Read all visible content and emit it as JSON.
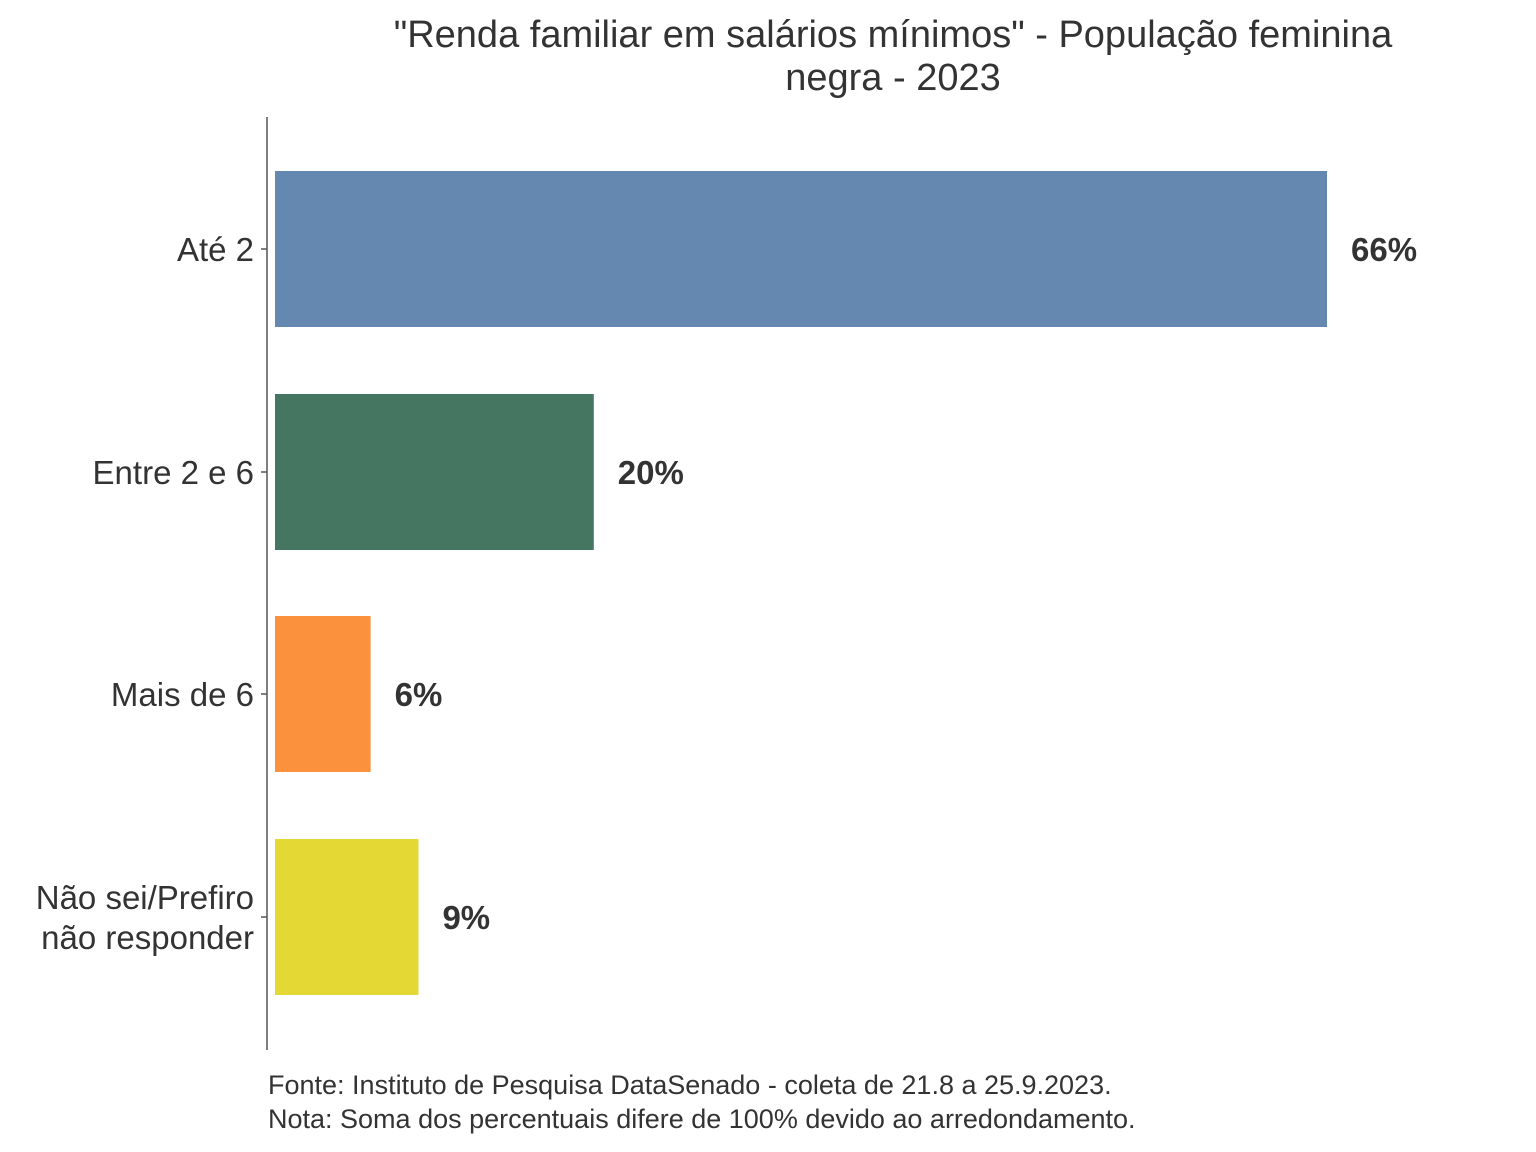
{
  "chart_data": {
    "type": "bar",
    "orientation": "horizontal",
    "title_lines": [
      "\"Renda familiar em salários mínimos\" - População feminina",
      "negra - 2023"
    ],
    "categories": [
      [
        "Até 2"
      ],
      [
        "Entre 2 e 6"
      ],
      [
        "Mais de 6"
      ],
      [
        "Não sei/Prefiro",
        "não responder"
      ]
    ],
    "values": [
      66,
      20,
      6,
      9
    ],
    "value_labels": [
      "66%",
      "20%",
      "6%",
      "9%"
    ],
    "colors": [
      "#6588b0",
      "#447662",
      "#fb913c",
      "#e4d835"
    ],
    "xlim": [
      0,
      75
    ],
    "grid": false,
    "legend": "none",
    "caption_lines": [
      "Fonte: Instituto de Pesquisa DataSenado - coleta de 21.8 a 25.9.2023.",
      "Nota: Soma dos percentuais difere de 100% devido ao arredondamento."
    ]
  }
}
